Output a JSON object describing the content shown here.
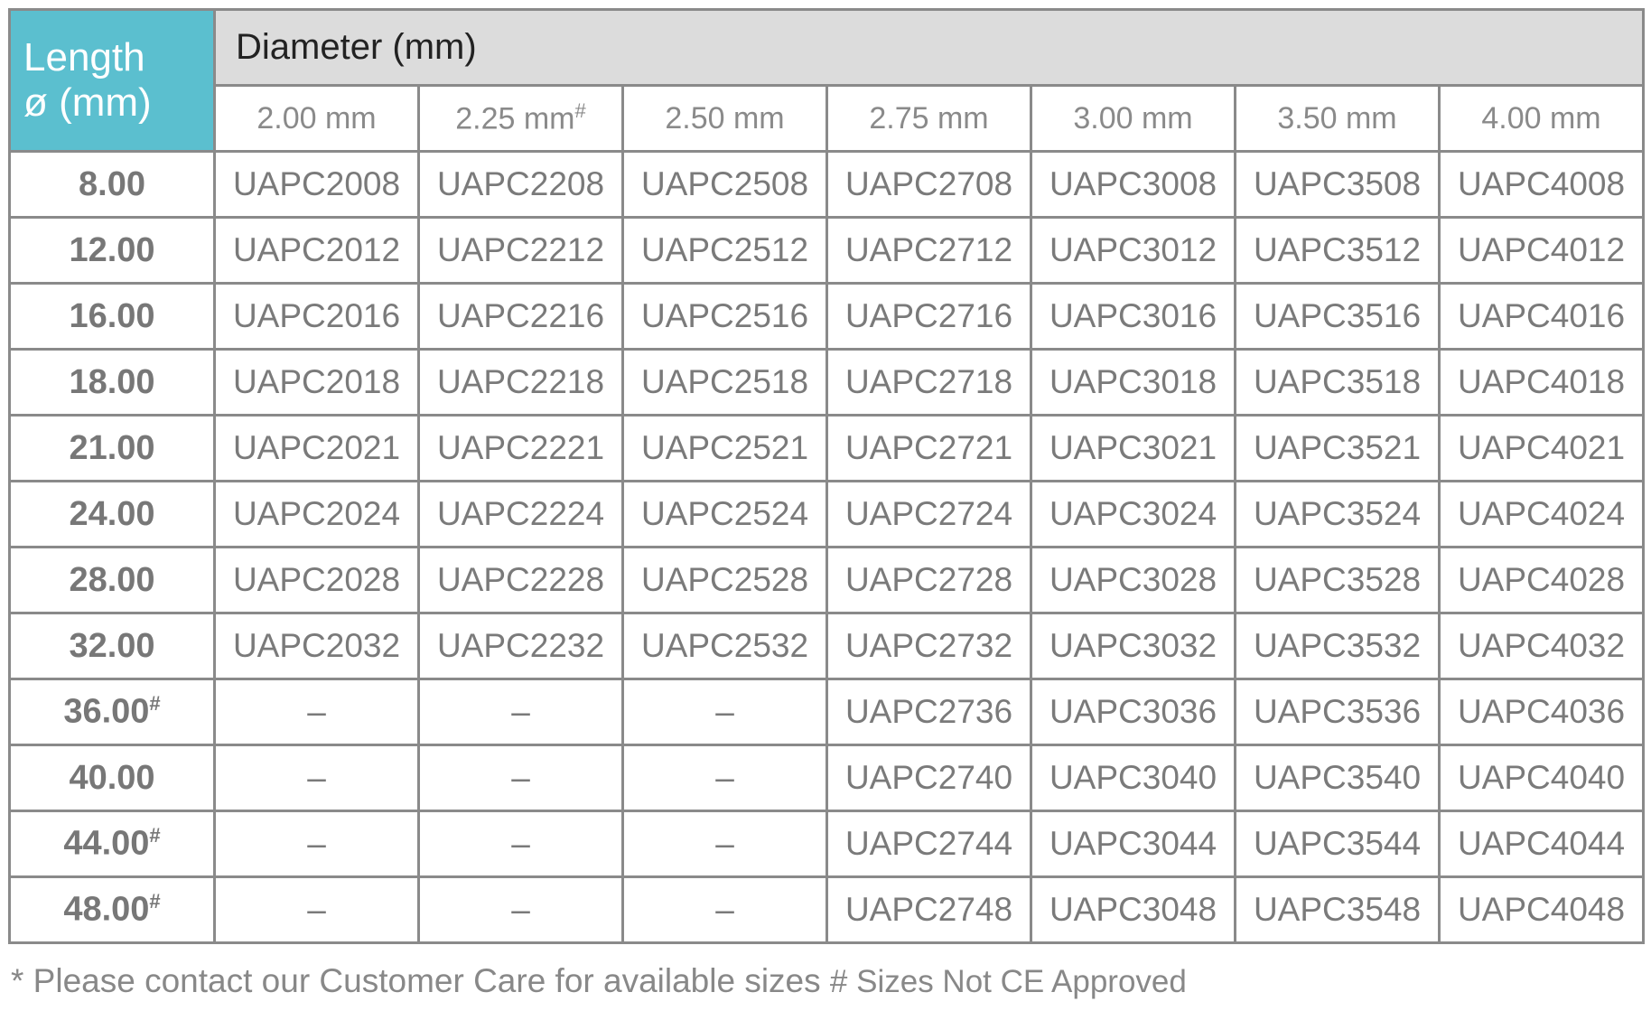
{
  "header": {
    "corner_line1": "Length",
    "corner_line2": "ø (mm)",
    "diameter_title": "Diameter (mm)",
    "accent_color": "#5bbfcf",
    "columns": [
      {
        "label": "2.00 mm",
        "mark": ""
      },
      {
        "label": "2.25 mm",
        "mark": "#"
      },
      {
        "label": "2.50 mm",
        "mark": ""
      },
      {
        "label": "2.75 mm",
        "mark": ""
      },
      {
        "label": "3.00 mm",
        "mark": ""
      },
      {
        "label": "3.50 mm",
        "mark": ""
      },
      {
        "label": "4.00 mm",
        "mark": ""
      }
    ]
  },
  "rows": [
    {
      "length": "8.00",
      "mark": "",
      "cells": [
        "UAPC2008",
        "UAPC2208",
        "UAPC2508",
        "UAPC2708",
        "UAPC3008",
        "UAPC3508",
        "UAPC4008"
      ]
    },
    {
      "length": "12.00",
      "mark": "",
      "cells": [
        "UAPC2012",
        "UAPC2212",
        "UAPC2512",
        "UAPC2712",
        "UAPC3012",
        "UAPC3512",
        "UAPC4012"
      ]
    },
    {
      "length": "16.00",
      "mark": "",
      "cells": [
        "UAPC2016",
        "UAPC2216",
        "UAPC2516",
        "UAPC2716",
        "UAPC3016",
        "UAPC3516",
        "UAPC4016"
      ]
    },
    {
      "length": "18.00",
      "mark": "",
      "cells": [
        "UAPC2018",
        "UAPC2218",
        "UAPC2518",
        "UAPC2718",
        "UAPC3018",
        "UAPC3518",
        "UAPC4018"
      ]
    },
    {
      "length": "21.00",
      "mark": "",
      "cells": [
        "UAPC2021",
        "UAPC2221",
        "UAPC2521",
        "UAPC2721",
        "UAPC3021",
        "UAPC3521",
        "UAPC4021"
      ]
    },
    {
      "length": "24.00",
      "mark": "",
      "cells": [
        "UAPC2024",
        "UAPC2224",
        "UAPC2524",
        "UAPC2724",
        "UAPC3024",
        "UAPC3524",
        "UAPC4024"
      ]
    },
    {
      "length": "28.00",
      "mark": "",
      "cells": [
        "UAPC2028",
        "UAPC2228",
        "UAPC2528",
        "UAPC2728",
        "UAPC3028",
        "UAPC3528",
        "UAPC4028"
      ]
    },
    {
      "length": "32.00",
      "mark": "",
      "cells": [
        "UAPC2032",
        "UAPC2232",
        "UAPC2532",
        "UAPC2732",
        "UAPC3032",
        "UAPC3532",
        "UAPC4032"
      ]
    },
    {
      "length": "36.00",
      "mark": "#",
      "cells": [
        "–",
        "–",
        "–",
        "UAPC2736",
        "UAPC3036",
        "UAPC3536",
        "UAPC4036"
      ]
    },
    {
      "length": "40.00",
      "mark": "",
      "cells": [
        "–",
        "–",
        "–",
        "UAPC2740",
        "UAPC3040",
        "UAPC3540",
        "UAPC4040"
      ]
    },
    {
      "length": "44.00",
      "mark": "#",
      "cells": [
        "–",
        "–",
        "–",
        "UAPC2744",
        "UAPC3044",
        "UAPC3544",
        "UAPC4044"
      ]
    },
    {
      "length": "48.00",
      "mark": "#",
      "cells": [
        "–",
        "–",
        "–",
        "UAPC2748",
        "UAPC3048",
        "UAPC3548",
        "UAPC4048"
      ]
    }
  ],
  "footer": {
    "note1": "* Please contact our Customer Care for available sizes",
    "note2": "# Sizes Not CE Approved"
  }
}
